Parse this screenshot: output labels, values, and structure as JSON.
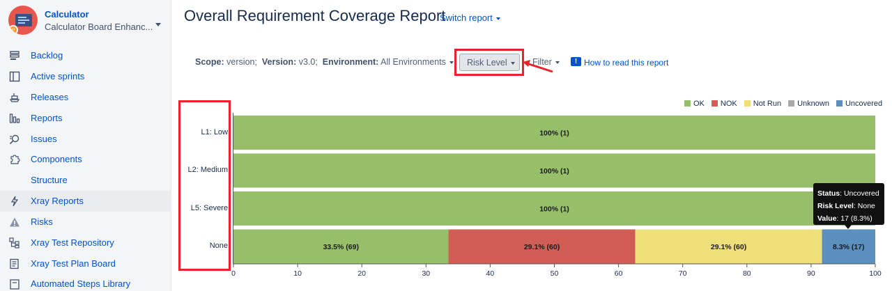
{
  "project": {
    "name": "Calculator",
    "board": "Calculator Board Enhanc..."
  },
  "sidebar": {
    "items": [
      {
        "label": "Backlog",
        "icon": "backlog-icon"
      },
      {
        "label": "Active sprints",
        "icon": "board-icon"
      },
      {
        "label": "Releases",
        "icon": "ship-icon"
      },
      {
        "label": "Reports",
        "icon": "chart-icon"
      },
      {
        "label": "Issues",
        "icon": "issues-search-icon"
      },
      {
        "label": "Components",
        "icon": "puzzle-icon"
      },
      {
        "label": "Structure",
        "icon": ""
      },
      {
        "label": "Xray Reports",
        "icon": "lightning-icon",
        "active": true
      },
      {
        "label": "Risks",
        "icon": "warning-icon"
      },
      {
        "label": "Xray Test Repository",
        "icon": "repository-icon"
      },
      {
        "label": "Xray Test Plan Board",
        "icon": "plan-board-icon"
      },
      {
        "label": "Automated Steps Library",
        "icon": "steps-library-icon"
      }
    ]
  },
  "header": {
    "title": "Overall Requirement Coverage Report",
    "switch_report": "Switch report"
  },
  "filters": {
    "scope_label": "Scope:",
    "scope_value": "version;",
    "version_label": "Version:",
    "version_value": "v3.0;",
    "environment_label": "Environment:",
    "environment_value": "All Environments",
    "risk_level": "Risk Level",
    "filter": "Filter",
    "help": "How to read this report"
  },
  "tooltip": {
    "status_label": "Status",
    "status_value": "Uncovered",
    "risk_label": "Risk Level",
    "risk_value": "None",
    "value_label": "Value",
    "value_value": "17 (8.3%)"
  },
  "colors": {
    "ok": "#97bf69",
    "nok": "#d15e56",
    "notrun": "#efdf7a",
    "unknown": "#a8a8a8",
    "uncovered": "#5b8fbf",
    "highlight": "#e8232a",
    "link": "#0052cc"
  },
  "chart_data": {
    "type": "bar",
    "orientation": "horizontal",
    "stacked": true,
    "categories": [
      "L1: Low",
      "L2: Medium",
      "L5: Severe",
      "None"
    ],
    "series": [
      {
        "name": "OK",
        "values": [
          100,
          100,
          100,
          33.5
        ],
        "labels": [
          "100% (1)",
          "100% (1)",
          "100% (1)",
          "33.5% (69)"
        ]
      },
      {
        "name": "NOK",
        "values": [
          0,
          0,
          0,
          29.1
        ],
        "labels": [
          "",
          "",
          "",
          "29.1% (60)"
        ]
      },
      {
        "name": "Not Run",
        "values": [
          0,
          0,
          0,
          29.1
        ],
        "labels": [
          "",
          "",
          "",
          "29.1% (60)"
        ]
      },
      {
        "name": "Unknown",
        "values": [
          0,
          0,
          0,
          0
        ],
        "labels": [
          "",
          "",
          "",
          ""
        ]
      },
      {
        "name": "Uncovered",
        "values": [
          0,
          0,
          0,
          8.3
        ],
        "labels": [
          "",
          "",
          "",
          "8.3% (17)"
        ]
      }
    ],
    "xlim": [
      0,
      100
    ],
    "xticks": [
      0,
      10,
      20,
      30,
      40,
      50,
      60,
      70,
      80,
      90,
      100
    ],
    "legend_position": "top-right",
    "grid": false
  }
}
